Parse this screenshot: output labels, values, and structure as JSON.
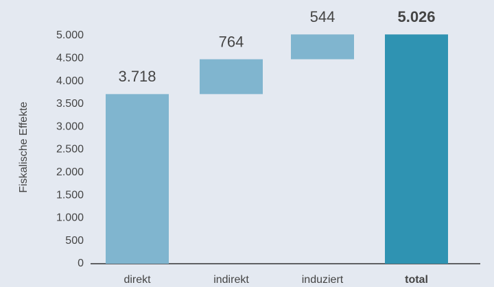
{
  "chart_data": {
    "type": "waterfall",
    "y_label": "Fiskalische Effekte",
    "categories": [
      "direkt",
      "indirekt",
      "induziert",
      "total"
    ],
    "values": [
      3718,
      764,
      544,
      5026
    ],
    "value_labels": [
      "3.718",
      "764",
      "544",
      "5.026"
    ],
    "bar_types": [
      "delta",
      "delta",
      "delta",
      "total"
    ],
    "colors": [
      "#80b5cf",
      "#80b5cf",
      "#80b5cf",
      "#2f93b2"
    ],
    "ylim": [
      0,
      5000
    ],
    "yticks": [
      0,
      500,
      {
        "value": 1000,
        "label": "1.000"
      },
      {
        "value": 1500,
        "label": "1.500"
      },
      {
        "value": 2000,
        "label": "2.000"
      },
      {
        "value": 2500,
        "label": "2.500"
      },
      {
        "value": 3000,
        "label": "3.000"
      },
      {
        "value": 3500,
        "label": "3.500"
      },
      {
        "value": 4000,
        "label": "4.000"
      },
      {
        "value": 4500,
        "label": "4.500"
      },
      {
        "value": 5000,
        "label": "5.000"
      }
    ]
  }
}
